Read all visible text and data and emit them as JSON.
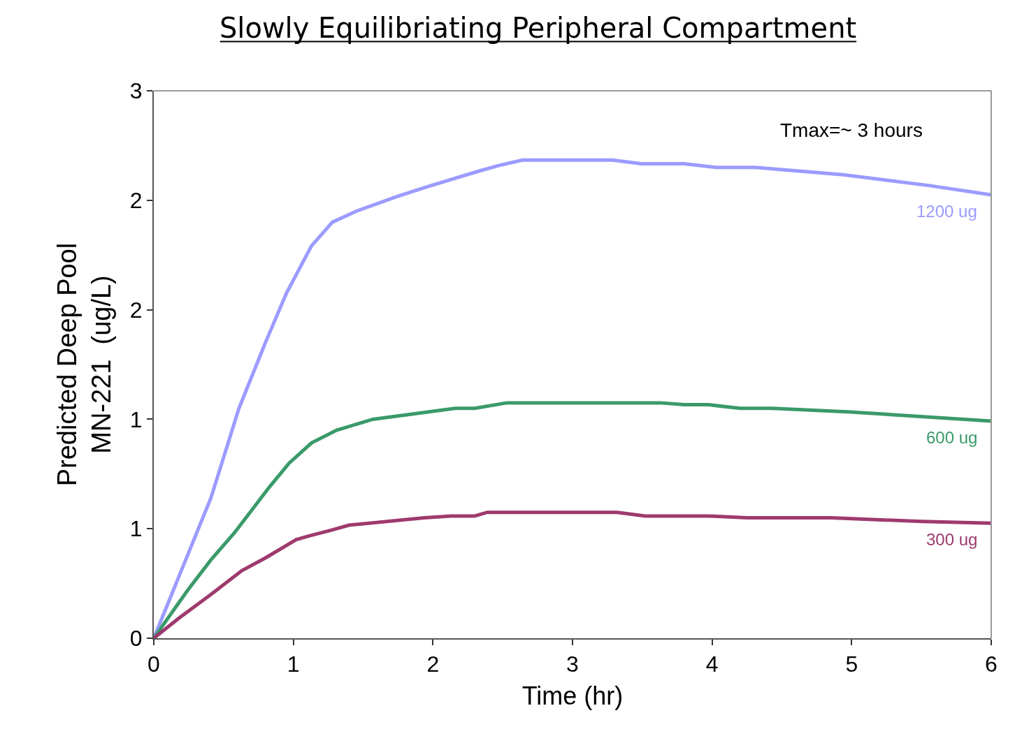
{
  "chart_data": {
    "type": "line",
    "title": "Slowly Equilibriating Peripheral Compartment",
    "xlabel": "Time (hr)",
    "ylabel": "Predicted Deep Pool\nMN-221  (ug/L)",
    "annotations": [
      "Tmax=~ 3 hours"
    ],
    "xlim": [
      0,
      6
    ],
    "xticks": [
      0,
      1,
      2,
      3,
      4,
      5,
      6
    ],
    "ylim": [
      0,
      3
    ],
    "yticks": [
      0,
      {
        "value": 0.6,
        "label": "1"
      },
      {
        "value": 1.2,
        "label": "1"
      },
      {
        "value": 1.8,
        "label": "2"
      },
      {
        "value": 2.4,
        "label": "2"
      },
      3
    ],
    "grid": false,
    "legend": false,
    "marker": "none",
    "line_style": "solid",
    "series": [
      {
        "name": "1200 ug",
        "color": "#9b9bff",
        "x": [
          0,
          0.41,
          0.61,
          0.8,
          0.95,
          1.13,
          1.28,
          1.45,
          1.74,
          1.94,
          2.33,
          2.47,
          2.64,
          3.29,
          3.49,
          3.8,
          4.03,
          4.31,
          4.94,
          5.56,
          6
        ],
        "values": [
          0,
          0.77,
          1.26,
          1.62,
          1.89,
          2.15,
          2.28,
          2.34,
          2.42,
          2.47,
          2.56,
          2.59,
          2.62,
          2.62,
          2.6,
          2.6,
          2.58,
          2.58,
          2.54,
          2.48,
          2.43
        ]
      },
      {
        "name": "600 ug",
        "color": "#3a9a6a",
        "x": [
          0,
          0.24,
          0.41,
          0.58,
          0.83,
          0.97,
          1.13,
          1.31,
          1.57,
          2.16,
          2.3,
          2.53,
          3.63,
          3.8,
          3.97,
          4.2,
          4.43,
          4.99,
          6
        ],
        "values": [
          0,
          0.26,
          0.43,
          0.58,
          0.83,
          0.96,
          1.07,
          1.14,
          1.2,
          1.26,
          1.26,
          1.29,
          1.29,
          1.28,
          1.28,
          1.26,
          1.26,
          1.24,
          1.19
        ]
      },
      {
        "name": "300 ug",
        "color": "#9e3a6e",
        "x": [
          0,
          0.18,
          0.41,
          0.63,
          0.8,
          1.02,
          1.11,
          1.26,
          1.4,
          1.94,
          2.13,
          2.3,
          2.39,
          3.32,
          3.52,
          3.97,
          4.25,
          4.85,
          5.5,
          6
        ],
        "values": [
          0,
          0.11,
          0.24,
          0.37,
          0.44,
          0.54,
          0.56,
          0.59,
          0.62,
          0.66,
          0.67,
          0.67,
          0.69,
          0.69,
          0.67,
          0.67,
          0.66,
          0.66,
          0.64,
          0.63
        ]
      }
    ]
  }
}
